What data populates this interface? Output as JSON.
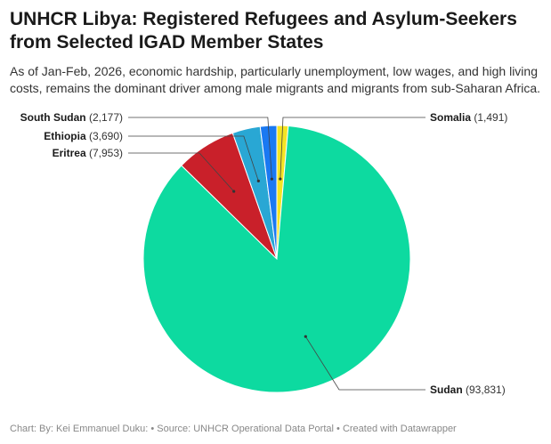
{
  "title": "UNHCR Libya: Registered Refugees and Asylum-Seekers from Selected IGAD Member States",
  "subtitle": "As of Jan-Feb, 2026, economic hardship, particularly unemployment, low wages, and high living costs, remains the dominant driver among male migrants and migrants from sub-Saharan Africa.",
  "footer": {
    "credit": "Chart: By: Kei Emmanuel Duku:",
    "source": "• Source: UNHCR Operational Data Portal",
    "tool": "• Created with Datawrapper"
  },
  "chart_data": {
    "type": "pie",
    "slices": [
      {
        "name": "Somalia",
        "value": 1491,
        "value_label": "(1,491)",
        "color": "#f4e423"
      },
      {
        "name": "Sudan",
        "value": 93831,
        "value_label": "(93,831)",
        "color": "#0ddaa0"
      },
      {
        "name": "Eritrea",
        "value": 7953,
        "value_label": "(7,953)",
        "color": "#c9202a"
      },
      {
        "name": "Ethiopia",
        "value": 3690,
        "value_label": "(3,690)",
        "color": "#29a7d4"
      },
      {
        "name": "South Sudan",
        "value": 2177,
        "value_label": "(2,177)",
        "color": "#1a79f2"
      }
    ]
  }
}
